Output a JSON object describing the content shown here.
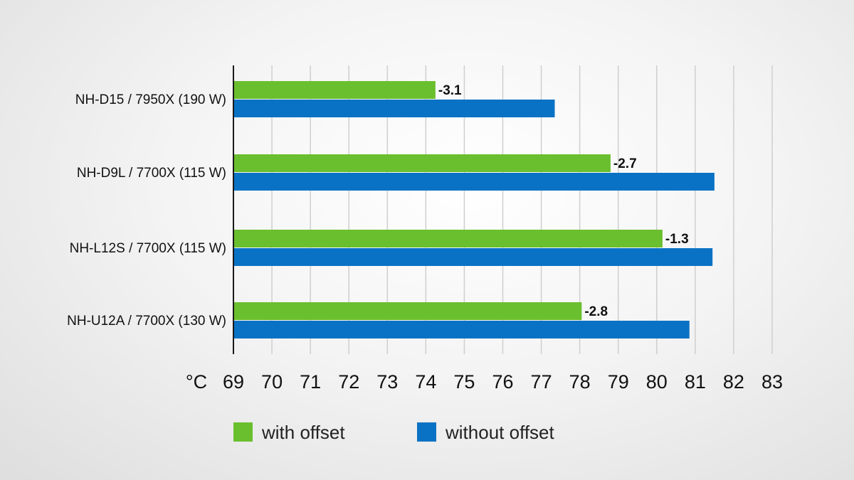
{
  "chart_data": {
    "type": "bar",
    "orientation": "horizontal",
    "categories": [
      "NH-D15 / 7950X (190 W)",
      "NH-D9L / 7700X (115 W)",
      "NH-L12S / 7700X (115 W)",
      "NH-U12A / 7700X (130 W)"
    ],
    "series": [
      {
        "name": "with offset",
        "color": "#6abf2e",
        "values": [
          74.25,
          78.8,
          80.15,
          78.05
        ]
      },
      {
        "name": "without offset",
        "color": "#0a72c4",
        "values": [
          77.35,
          81.5,
          81.45,
          80.85
        ]
      }
    ],
    "annotations": [
      "-3.1",
      "-2.7",
      "-1.3",
      "-2.8"
    ],
    "unit_label": "°C",
    "xlim": [
      69,
      83
    ],
    "ticks": [
      "69",
      "70",
      "71",
      "72",
      "73",
      "74",
      "75",
      "76",
      "77",
      "78",
      "79",
      "80",
      "81",
      "82",
      "83"
    ],
    "grid": true,
    "legend_position": "bottom"
  }
}
